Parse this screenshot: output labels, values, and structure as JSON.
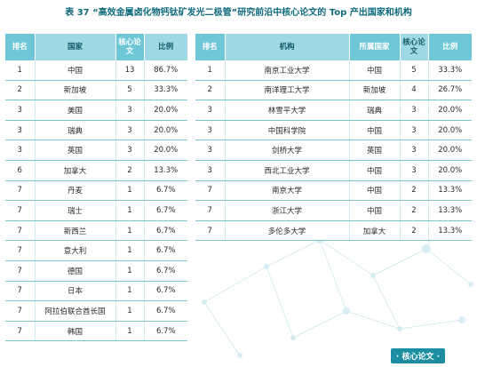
{
  "title": "表 37 “高效金属卤化物钙钛矿发光二极管”研究前沿中核心论文的 Top 产出国家和机构",
  "country_table": {
    "headers": {
      "rank": "排名",
      "country": "国家",
      "papers": "核心论文",
      "ratio": "比例"
    },
    "rows": [
      {
        "rank": "1",
        "country": "中国",
        "papers": "13",
        "ratio": "86.7%"
      },
      {
        "rank": "2",
        "country": "新加坡",
        "papers": "5",
        "ratio": "33.3%"
      },
      {
        "rank": "3",
        "country": "美国",
        "papers": "3",
        "ratio": "20.0%"
      },
      {
        "rank": "3",
        "country": "瑞典",
        "papers": "3",
        "ratio": "20.0%"
      },
      {
        "rank": "3",
        "country": "英国",
        "papers": "3",
        "ratio": "20.0%"
      },
      {
        "rank": "6",
        "country": "加拿大",
        "papers": "2",
        "ratio": "13.3%"
      },
      {
        "rank": "7",
        "country": "丹麦",
        "papers": "1",
        "ratio": "6.7%"
      },
      {
        "rank": "7",
        "country": "瑞士",
        "papers": "1",
        "ratio": "6.7%"
      },
      {
        "rank": "7",
        "country": "新西兰",
        "papers": "1",
        "ratio": "6.7%"
      },
      {
        "rank": "7",
        "country": "意大利",
        "papers": "1",
        "ratio": "6.7%"
      },
      {
        "rank": "7",
        "country": "德国",
        "papers": "1",
        "ratio": "6.7%"
      },
      {
        "rank": "7",
        "country": "日本",
        "papers": "1",
        "ratio": "6.7%"
      },
      {
        "rank": "7",
        "country": "阿拉伯联合酋长国",
        "papers": "1",
        "ratio": "6.7%"
      },
      {
        "rank": "7",
        "country": "韩国",
        "papers": "1",
        "ratio": "6.7%"
      }
    ]
  },
  "institution_table": {
    "headers": {
      "rank": "排名",
      "institution": "机构",
      "country": "所属国家",
      "papers": "核心论文",
      "ratio": "比例"
    },
    "rows": [
      {
        "rank": "1",
        "institution": "南京工业大学",
        "country": "中国",
        "papers": "5",
        "ratio": "33.3%"
      },
      {
        "rank": "2",
        "institution": "南洋理工大学",
        "country": "新加坡",
        "papers": "4",
        "ratio": "26.7%"
      },
      {
        "rank": "3",
        "institution": "林雪平大学",
        "country": "瑞典",
        "papers": "3",
        "ratio": "20.0%"
      },
      {
        "rank": "3",
        "institution": "中国科学院",
        "country": "中国",
        "papers": "3",
        "ratio": "20.0%"
      },
      {
        "rank": "3",
        "institution": "剑桥大学",
        "country": "英国",
        "papers": "3",
        "ratio": "20.0%"
      },
      {
        "rank": "3",
        "institution": "西北工业大学",
        "country": "中国",
        "papers": "3",
        "ratio": "20.0%"
      },
      {
        "rank": "7",
        "institution": "南京大学",
        "country": "中国",
        "papers": "2",
        "ratio": "13.3%"
      },
      {
        "rank": "7",
        "institution": "浙江大学",
        "country": "中国",
        "papers": "2",
        "ratio": "13.3%"
      },
      {
        "rank": "7",
        "institution": "多伦多大学",
        "country": "加拿大",
        "papers": "2",
        "ratio": "13.3%"
      }
    ]
  },
  "footer_tag": "· 核心论文 ·",
  "colors": {
    "header_bg": "#9fdae4",
    "header_hl": "#6ec7d6",
    "title": "#0f6a7d",
    "tag_bg": "#1b8ea2"
  }
}
